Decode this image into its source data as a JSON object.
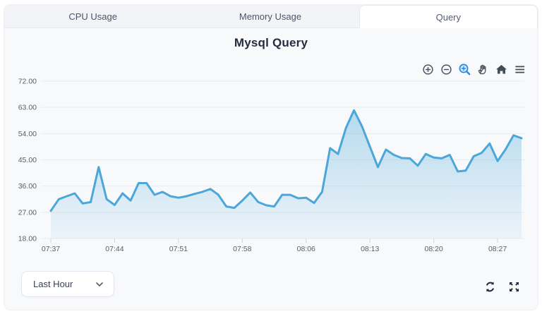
{
  "tabs": [
    {
      "label": "CPU Usage",
      "active": false
    },
    {
      "label": "Memory Usage",
      "active": false
    },
    {
      "label": "Query",
      "active": true
    }
  ],
  "toolbar": {
    "icons": [
      "zoom-in",
      "zoom-out",
      "selection-zoom",
      "pan",
      "home",
      "menu"
    ],
    "active_icon": "selection-zoom"
  },
  "footer": {
    "range_label": "Last Hour"
  },
  "colors": {
    "line": "#4BA7D9",
    "fill_top": "rgba(75,167,217,0.38)",
    "fill_bottom": "rgba(75,167,217,0.07)",
    "accent_blue": "#1E88E5",
    "title": "#252B42",
    "icon_dark": "#23263C",
    "grid_line": "#e9ebf0",
    "axis_label": "#5a5d66"
  },
  "chart_data": {
    "type": "area",
    "title": "Mysql Query",
    "xlabel": "",
    "ylabel": "",
    "ylim": [
      18,
      72
    ],
    "y_ticks": [
      18,
      27,
      36,
      45,
      54,
      63,
      72
    ],
    "y_tick_labels": [
      "18.00",
      "27.00",
      "36.00",
      "45.00",
      "54.00",
      "63.00",
      "72.00"
    ],
    "x_tick_labels": [
      "07:37",
      "07:44",
      "07:51",
      "07:58",
      "08:06",
      "08:13",
      "08:20",
      "08:27"
    ],
    "x_tick_indices": [
      0,
      8,
      16,
      24,
      32,
      40,
      48,
      56
    ],
    "grid": true,
    "legend": "none",
    "series": [
      {
        "name": "Mysql Query",
        "values": [
          27.5,
          31.5,
          32.5,
          33.5,
          30.0,
          30.5,
          42.5,
          31.5,
          29.5,
          33.5,
          31.0,
          37.0,
          37.0,
          33.0,
          34.0,
          32.5,
          32.0,
          32.5,
          33.3,
          34.0,
          35.0,
          33.0,
          29.0,
          28.5,
          31.0,
          33.8,
          30.5,
          29.4,
          29.0,
          33.0,
          33.0,
          31.8,
          32.0,
          30.2,
          34.0,
          49.0,
          47.0,
          56.0,
          62.0,
          56.5,
          49.5,
          42.5,
          48.5,
          46.7,
          45.6,
          45.5,
          43.0,
          47.0,
          45.8,
          45.5,
          46.7,
          41.0,
          41.3,
          46.2,
          47.4,
          50.6,
          44.6,
          48.6,
          53.4,
          52.4
        ]
      }
    ]
  }
}
